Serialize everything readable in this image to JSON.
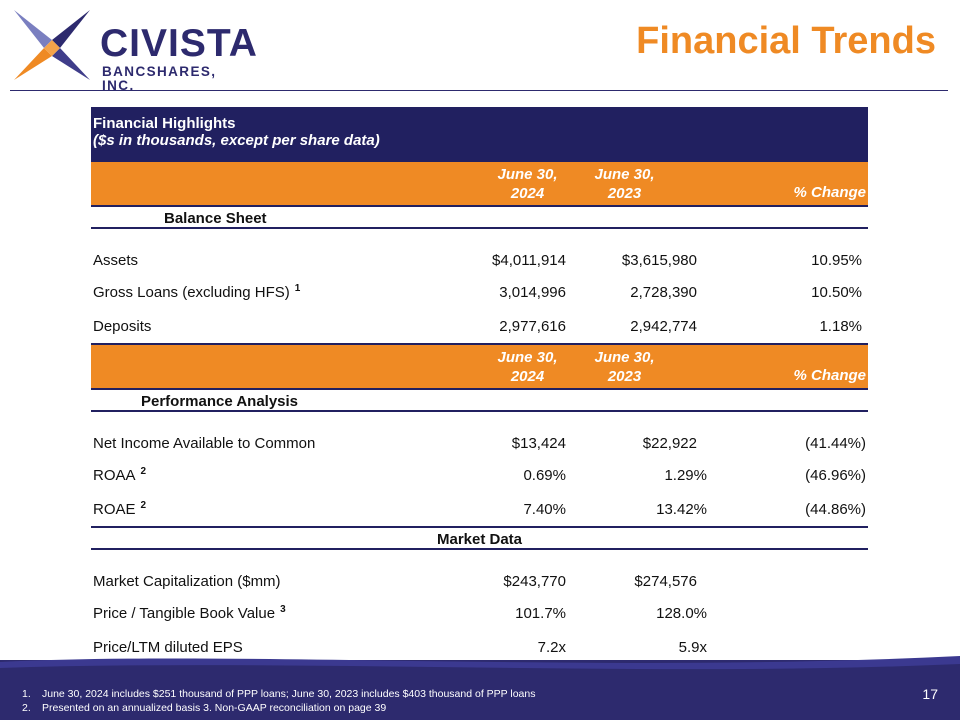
{
  "header": {
    "logo_name": "CIVISTA",
    "logo_sub": "BANCSHARES, INC.",
    "title": "Financial Trends"
  },
  "colors": {
    "navy": "#212060",
    "orange": "#ef8a24",
    "brand_navy": "#2d2a6e"
  },
  "icons": {
    "logo": "civista-star-logo-icon"
  },
  "table": {
    "title": "Financial Highlights",
    "subtitle": "($s in thousands, except per share data)",
    "col_headers": [
      {
        "line1": "June 30,",
        "line2": "2024"
      },
      {
        "line1": "June 30,",
        "line2": "2023"
      },
      {
        "line1": "",
        "line2": "% Change"
      }
    ],
    "balance_sheet": {
      "heading": "Balance Sheet",
      "rows": [
        {
          "label": "Assets",
          "sup": "",
          "v2024": "$4,011,914",
          "v2023": "$3,615,980",
          "change": "10.95%"
        },
        {
          "label": "Gross Loans (excluding HFS)",
          "sup": "1",
          "v2024": "3,014,996",
          "v2023": "2,728,390",
          "change": "10.50%"
        },
        {
          "label": "Deposits",
          "sup": "",
          "v2024": "2,977,616",
          "v2023": "2,942,774",
          "change": "1.18%"
        }
      ]
    },
    "performance": {
      "heading": "Performance Analysis",
      "rows": [
        {
          "label": "Net Income Available to Common",
          "sup": "",
          "v2024": "$13,424",
          "v2023": "$22,922",
          "change": "(41.44%)"
        },
        {
          "label": "ROAA",
          "sup": "2",
          "v2024": "0.69%",
          "v2023": "1.29%",
          "change": "(46.96%)"
        },
        {
          "label": "ROAE",
          "sup": "2",
          "v2024": "7.40%",
          "v2023": "13.42%",
          "change": "(44.86%)"
        }
      ]
    },
    "market": {
      "heading": "Market Data",
      "rows": [
        {
          "label": "Market Capitalization ($mm)",
          "sup": "",
          "v2024": "$243,770",
          "v2023": "$274,576"
        },
        {
          "label": "Price / Tangible Book Value",
          "sup": "3",
          "v2024": "101.7%",
          "v2023": "128.0%"
        },
        {
          "label": "Price/LTM diluted EPS",
          "sup": "",
          "v2024": "7.2x",
          "v2023": "5.9x"
        }
      ]
    }
  },
  "footer": {
    "notes": [
      {
        "num": "1.",
        "text": "June 30, 2024 includes $251 thousand of PPP loans; June 30, 2023 includes $403 thousand of PPP loans"
      },
      {
        "num": "2.",
        "text": "Presented on an annualized basis  3. Non-GAAP reconciliation on page 39"
      }
    ],
    "page_number": "17"
  }
}
